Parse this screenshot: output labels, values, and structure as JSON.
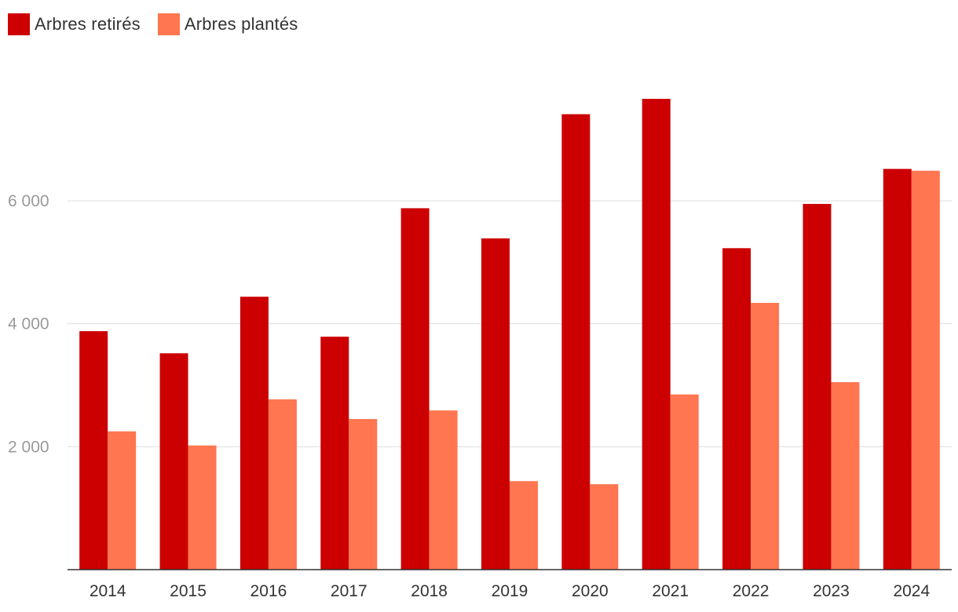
{
  "chart_data": {
    "type": "bar",
    "categories": [
      "2014",
      "2015",
      "2016",
      "2017",
      "2018",
      "2019",
      "2020",
      "2021",
      "2022",
      "2023",
      "2024"
    ],
    "series": [
      {
        "name": "Arbres retirés",
        "color": "#cc0000",
        "values": [
          3880,
          3520,
          4440,
          3790,
          5880,
          5390,
          7410,
          7660,
          5230,
          5950,
          6520
        ]
      },
      {
        "name": "Arbres plantés",
        "color": "#ff7650",
        "values": [
          2250,
          2020,
          2770,
          2450,
          2590,
          1440,
          1390,
          2850,
          4340,
          3050,
          6490
        ]
      }
    ],
    "yticks": [
      2000,
      4000,
      6000
    ],
    "ytick_labels": [
      "2 000",
      "4 000",
      "6 000"
    ],
    "ylim": [
      0,
      8700
    ],
    "title": "",
    "xlabel": "",
    "ylabel": "",
    "grid": true,
    "legend_position": "top-left"
  }
}
